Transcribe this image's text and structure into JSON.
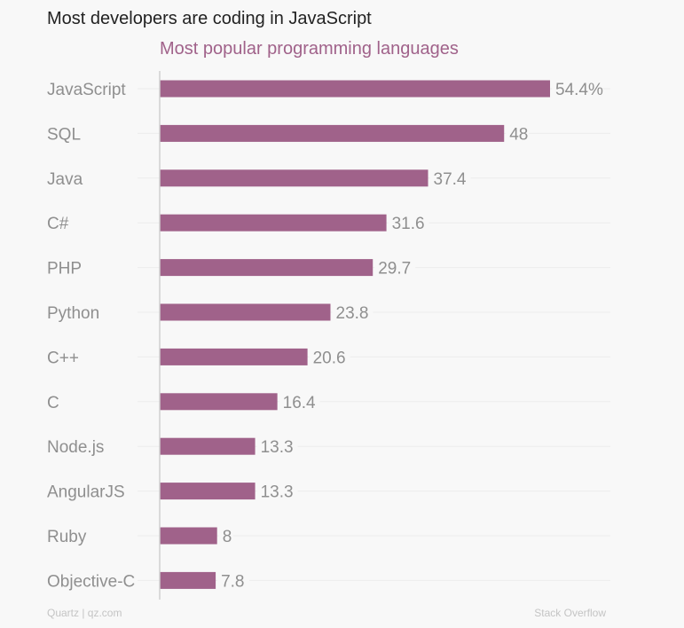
{
  "chart_data": {
    "type": "bar",
    "orientation": "horizontal",
    "title": "Most developers are coding in JavaScript",
    "subtitle": "Most popular programming languages",
    "categories": [
      "JavaScript",
      "SQL",
      "Java",
      "C#",
      "PHP",
      "Python",
      "C++",
      "C",
      "Node.js",
      "AngularJS",
      "Ruby",
      "Objective-C"
    ],
    "values": [
      54.4,
      48,
      37.4,
      31.6,
      29.7,
      23.8,
      20.6,
      16.4,
      13.3,
      13.3,
      8,
      7.8
    ],
    "data_labels": [
      "54.4%",
      "48",
      "37.4",
      "31.6",
      "29.7",
      "23.8",
      "20.6",
      "16.4",
      "13.3",
      "13.3",
      "8",
      "7.8"
    ],
    "unit": "%",
    "xlabel": "",
    "ylabel": "",
    "xlim": [
      0,
      63
    ],
    "grid": true,
    "bar_color": "#a0628a"
  },
  "footer": {
    "credit": "Quartz | qz.com",
    "source": "Stack Overflow"
  }
}
